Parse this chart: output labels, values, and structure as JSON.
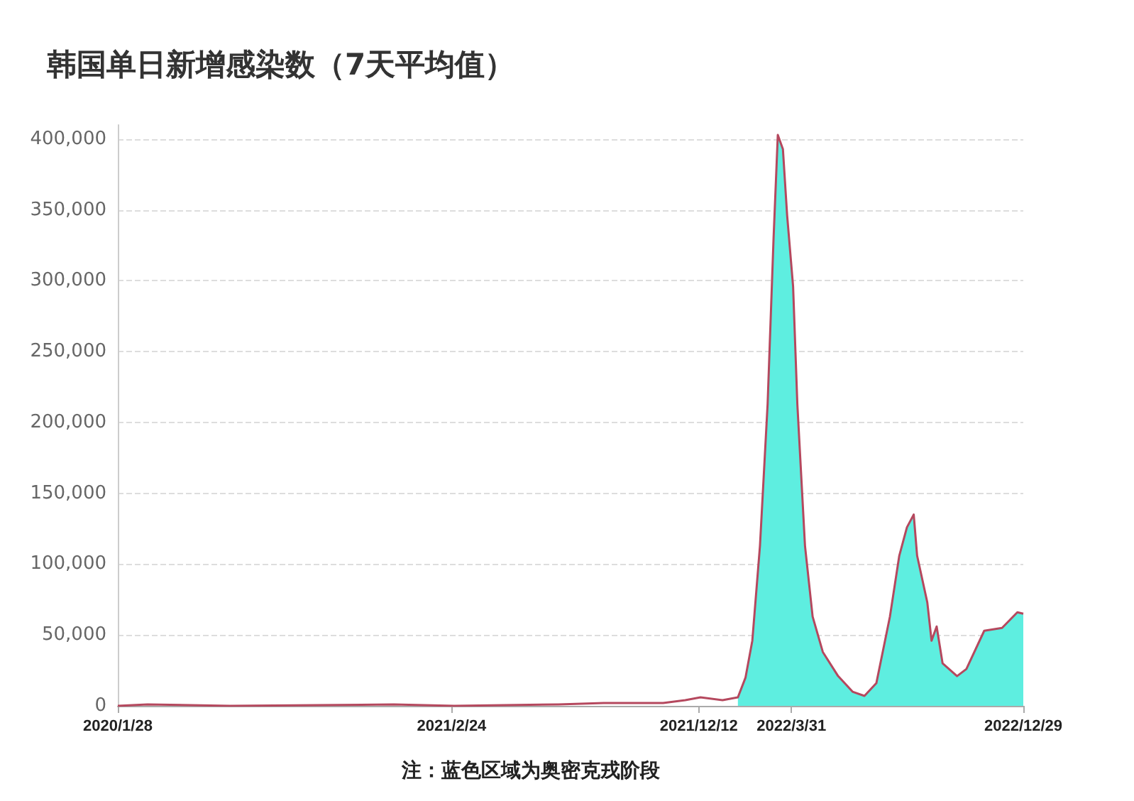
{
  "chart_data": {
    "type": "line",
    "title": "韩国单日新增感染数（7天平均值）",
    "annotations": [
      "注：蓝色区域为奥密克戎阶段"
    ],
    "series": [
      {
        "color": "#b5485e",
        "x": [
          "2020-01-28",
          "2020-03-03",
          "2020-06-08",
          "2020-12-18",
          "2021-02-27",
          "2021-06-30",
          "2021-08-22",
          "2021-10-31",
          "2021-11-26",
          "2021-12-14",
          "2022-01-09",
          "2022-01-18",
          "2022-01-27",
          "2022-02-05",
          "2022-02-13",
          "2022-02-22",
          "2022-03-03",
          "2022-03-10",
          "2022-03-15",
          "2022-03-21",
          "2022-03-26",
          "2022-04-02",
          "2022-04-07",
          "2022-04-16",
          "2022-04-25",
          "2022-05-07",
          "2022-05-25",
          "2022-06-11",
          "2022-06-25",
          "2022-07-09",
          "2022-07-25",
          "2022-08-05",
          "2022-08-14",
          "2022-08-22",
          "2022-08-26",
          "2022-09-07",
          "2022-09-12",
          "2022-09-18",
          "2022-09-25",
          "2022-10-12",
          "2022-10-23",
          "2022-11-13",
          "2022-12-04",
          "2022-12-22",
          "2022-12-29"
        ],
        "values": [
          0,
          1000,
          0,
          1000,
          0,
          1000,
          2000,
          2000,
          4000,
          6000,
          4000,
          5000,
          6000,
          20000,
          46000,
          113000,
          213000,
          330000,
          403000,
          393000,
          346000,
          296000,
          213000,
          113000,
          63000,
          38000,
          21000,
          10000,
          7000,
          16000,
          63000,
          106000,
          126000,
          135000,
          106000,
          73000,
          46000,
          56000,
          30000,
          21000,
          26000,
          53000,
          55000,
          66000,
          65000
        ]
      },
      {
        "type": "area",
        "color": "#5eeee0",
        "x": [
          "2022-01-27",
          "2022-02-05",
          "2022-02-13",
          "2022-02-22",
          "2022-03-03",
          "2022-03-10",
          "2022-03-15",
          "2022-03-21",
          "2022-03-26",
          "2022-04-02",
          "2022-04-07",
          "2022-04-16",
          "2022-04-25",
          "2022-05-07",
          "2022-05-25",
          "2022-06-11",
          "2022-06-25",
          "2022-07-09",
          "2022-07-25",
          "2022-08-05",
          "2022-08-14",
          "2022-08-22",
          "2022-08-26",
          "2022-09-07",
          "2022-09-12",
          "2022-09-18",
          "2022-09-25",
          "2022-10-12",
          "2022-10-23",
          "2022-11-13",
          "2022-12-04",
          "2022-12-22",
          "2022-12-29"
        ],
        "values": [
          6000,
          20000,
          46000,
          113000,
          213000,
          330000,
          403000,
          393000,
          346000,
          296000,
          213000,
          113000,
          63000,
          38000,
          21000,
          10000,
          7000,
          16000,
          63000,
          106000,
          126000,
          135000,
          106000,
          73000,
          46000,
          56000,
          30000,
          21000,
          26000,
          53000,
          55000,
          66000,
          65000
        ]
      }
    ],
    "xlim": [
      "2020-01-28",
      "2022-12-29"
    ],
    "xticks": [
      {
        "value": "2020-01-28",
        "label": "2020/1/28"
      },
      {
        "value": "2021-02-24",
        "label": "2021/2/24"
      },
      {
        "value": "2021-12-12",
        "label": "2021/12/12"
      },
      {
        "value": "2022-03-31",
        "label": "2022/3/31"
      },
      {
        "value": "2022-12-29",
        "label": "2022/12/29"
      }
    ],
    "ylim": [
      0,
      410000
    ],
    "yticks": [
      {
        "value": 0,
        "label": "0"
      },
      {
        "value": 50000,
        "label": "50,000"
      },
      {
        "value": 100000,
        "label": "100,000"
      },
      {
        "value": 150000,
        "label": "150,000"
      },
      {
        "value": 200000,
        "label": "200,000"
      },
      {
        "value": 250000,
        "label": "250,000"
      },
      {
        "value": 300000,
        "label": "300,000"
      },
      {
        "value": 350000,
        "label": "350,000"
      },
      {
        "value": 400000,
        "label": "400,000"
      }
    ],
    "grid": "y",
    "marker": "none"
  }
}
